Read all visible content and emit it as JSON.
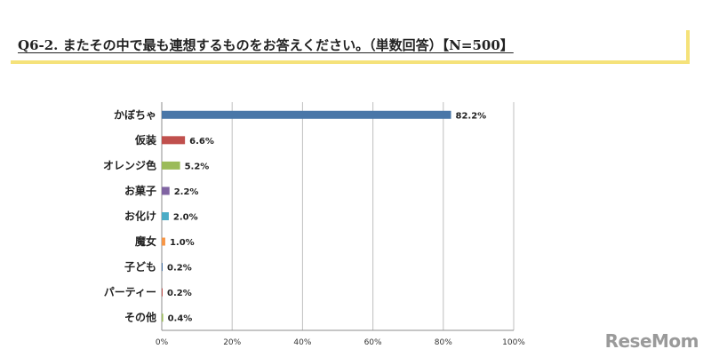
{
  "title": "Q6-2. またその中で最も連想するものをお答えください。（単数回答）【N=500】",
  "watermark": "ReseMom",
  "chart_data": {
    "type": "bar",
    "orientation": "horizontal",
    "categories": [
      "かぼちゃ",
      "仮装",
      "オレンジ色",
      "お菓子",
      "お化け",
      "魔女",
      "子ども",
      "パーティー",
      "その他"
    ],
    "values": [
      82.2,
      6.6,
      5.2,
      2.2,
      2.0,
      1.0,
      0.2,
      0.2,
      0.4
    ],
    "value_labels": [
      "82.2%",
      "6.6%",
      "5.2%",
      "2.2%",
      "2.0%",
      "1.0%",
      "0.2%",
      "0.2%",
      "0.4%"
    ],
    "colors": [
      "#4a77a8",
      "#c0504d",
      "#9bbb59",
      "#8064a2",
      "#4bacc6",
      "#f79646",
      "#4a77a8",
      "#c0504d",
      "#9bbb59"
    ],
    "xlim": [
      0,
      100
    ],
    "xticks": [
      0,
      20,
      40,
      60,
      80,
      100
    ],
    "xtick_labels": [
      "0%",
      "20%",
      "40%",
      "60%",
      "80%",
      "100%"
    ],
    "grid": true
  }
}
